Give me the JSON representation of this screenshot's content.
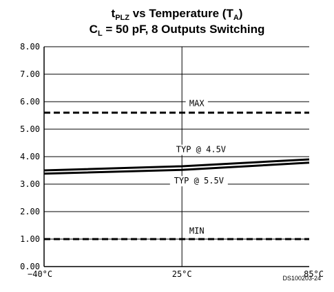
{
  "title": {
    "line1": {
      "t": "t",
      "t_sub": "PLZ",
      "mid": " vs Temperature (T",
      "mid_sub": "A",
      "end": ")"
    },
    "line2": {
      "c": "C",
      "c_sub": "L",
      "rest": " = 50 pF, 8 Outputs Switching"
    }
  },
  "doc_id": "DS100203-24",
  "chart_data": {
    "type": "line",
    "title": "tPLZ vs Temperature (TA), CL = 50 pF, 8 Outputs Switching",
    "xlabel": "",
    "ylabel": "",
    "x_ticks": [
      -40,
      25,
      85
    ],
    "x_tick_labels": [
      "−40°C",
      "25°C",
      "85°C"
    ],
    "xlim": [
      -40,
      85
    ],
    "y_ticks": [
      0,
      1,
      2,
      3,
      4,
      5,
      6,
      7,
      8
    ],
    "y_tick_labels": [
      "0.00",
      "1.00",
      "2.00",
      "3.00",
      "4.00",
      "5.00",
      "6.00",
      "7.00",
      "8.00"
    ],
    "ylim": [
      0,
      8
    ],
    "grid": true,
    "series": [
      {
        "name": "MAX",
        "style": "dashed",
        "x": [
          -40,
          85
        ],
        "values": [
          5.6,
          5.6
        ]
      },
      {
        "name": "TYP @ 4.5V",
        "style": "solid",
        "x": [
          -40,
          25,
          85
        ],
        "values": [
          3.5,
          3.65,
          3.9
        ]
      },
      {
        "name": "TYP @ 5.5V",
        "style": "solid",
        "x": [
          -40,
          25,
          85
        ],
        "values": [
          3.38,
          3.52,
          3.78
        ]
      },
      {
        "name": "MIN",
        "style": "dashed",
        "x": [
          -40,
          85
        ],
        "values": [
          1.0,
          1.0
        ]
      }
    ],
    "annotations": [
      {
        "text": "MAX",
        "x": 32,
        "y": 5.84
      },
      {
        "text": "TYP @ 4.5V",
        "x": 34,
        "y": 4.16
      },
      {
        "text": "TYP @ 5.5V",
        "x": 33,
        "y": 3.02
      },
      {
        "text": "MIN",
        "x": 32,
        "y": 1.2
      }
    ]
  }
}
